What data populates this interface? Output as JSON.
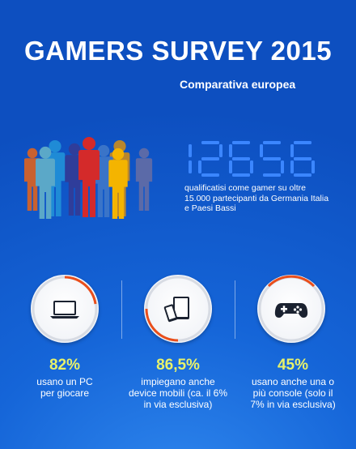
{
  "title": "GAMERS SURVEY 2015",
  "subtitle": "Comparativa europea",
  "count": {
    "digits": "12656",
    "description": "qualificatisi come gamer su oltre 15.000 partecipanti da Germania Italia e Paesi Bassi"
  },
  "colors": {
    "background": "#1565d8",
    "accent_yellow": "#e8f26a",
    "ring_orange": "#e94e1b",
    "digit_segment": "#3b86ff"
  },
  "people_colors": [
    "#c9612f",
    "#1f8bd6",
    "#5ba8c8",
    "#2f3d9a",
    "#d42a2a",
    "#3a74c8",
    "#b8862e",
    "#f4b400",
    "#5b6aa8"
  ],
  "stats": [
    {
      "icon": "laptop-icon",
      "value": "82%",
      "text": "usano un PC per giocare"
    },
    {
      "icon": "tablet-phone-icon",
      "value": "86,5%",
      "text": "impiegano anche device mobili (ca. il 6% in via esclusiva)"
    },
    {
      "icon": "gamepad-icon",
      "value": "45%",
      "text": "usano anche una o più console (solo il 7% in via esclusiva)"
    }
  ]
}
